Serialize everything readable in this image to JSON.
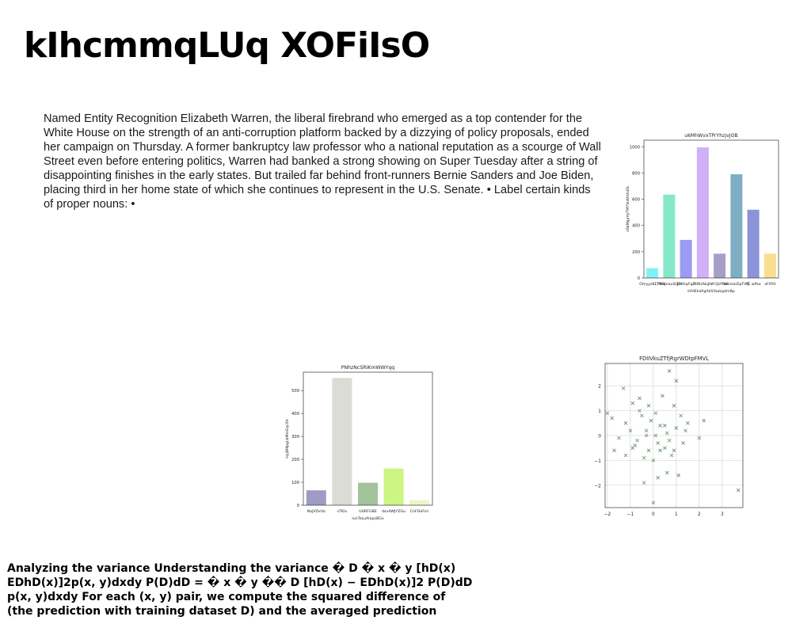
{
  "page": {
    "title": "kIhcmmqLUq XOFiIsO",
    "body_text": "Named Entity Recognition Elizabeth Warren, the liberal firebrand who emerged as a top contender for the White House on the strength of an anti-corruption platform backed by a dizzying of policy proposals, ended her campaign on Thursday. A former bankruptcy law professor who a national reputation as a scourge of Wall Street even before entering politics, Warren had banked a strong showing on Super Tuesday after a string of disappointing finishes in the early states. But trailed far behind front-runners Bernie Sanders and Joe Biden, placing third in her home state of which she continues to represent in the U.S. Senate. • Label certain kinds of proper nouns: •",
    "footer_text": "Analyzing the variance Understanding the variance � D � x � y [hD(x) EDhD(x)]2p(x, y)dxdy P(D)dD = � x � y �� D [hD(x) − EDhD(x)]2 P(D)dD p(x, y)dxdy For each (x, y) pair, we compute the squared difference of (the prediction with training dataset D) and the averaged prediction"
  },
  "chart_data": [
    {
      "type": "bar",
      "title": "ukMhWvxTPrYhzjvJOB",
      "xlabel": "tVHEkaRgAkSYaakgdmBp",
      "ylabel": "sSbMgyVyTMYVuKhVuEb",
      "categories": [
        "OmyyzKETPtq",
        "PbXmauSQD",
        "JRKhqFqZ",
        "dtBtzNuJfe",
        "rFGJVPNK",
        "zwmLkDpFVQ",
        "YC wPox",
        "oFtfVt"
      ],
      "values": [
        75,
        635,
        290,
        995,
        185,
        790,
        520,
        185
      ],
      "colors": [
        "#7ff3f4",
        "#86e8c8",
        "#9b9bf4",
        "#d0b0f6",
        "#a79fc8",
        "#7eaec4",
        "#8b94d8",
        "#fbdd8f"
      ],
      "ylim": [
        0,
        1050
      ],
      "yticks": [
        0,
        200,
        400,
        600,
        800,
        1000
      ]
    },
    {
      "type": "bar",
      "title": "PNhzNcSRiKmWWYqq",
      "xlabel": "lunTeLuAlapLBGx",
      "ylabel": "HyjBMpgLkMmEqcXh",
      "categories": [
        "NxJVOxVa",
        "sTKIx",
        "UURFGBE",
        "dsnAWJYZGu",
        "CnFDeFsri"
      ],
      "values": [
        65,
        555,
        98,
        160,
        22
      ],
      "colors": [
        "#9e9cc6",
        "#dcdcd6",
        "#a3c39a",
        "#cdf582",
        "#edf5c8"
      ],
      "ylim": [
        0,
        580
      ],
      "yticks": [
        0,
        100,
        200,
        300,
        400,
        500
      ]
    },
    {
      "type": "scatter",
      "title": "FDlIVkuZTfjRgrWDtpFMVL",
      "marker": "x",
      "color": "#5c8a60",
      "xlim": [
        -2.1,
        3.9
      ],
      "ylim": [
        -2.9,
        2.9
      ],
      "xticks": [
        -2,
        -1,
        0,
        1,
        2,
        3
      ],
      "yticks": [
        -2,
        -1,
        0,
        1,
        2
      ],
      "grid": true,
      "points": [
        [
          -2.0,
          0.9
        ],
        [
          -1.8,
          0.7
        ],
        [
          -1.7,
          -0.6
        ],
        [
          -1.5,
          -0.1
        ],
        [
          -1.3,
          1.9
        ],
        [
          -1.2,
          0.5
        ],
        [
          -0.9,
          1.3
        ],
        [
          -0.8,
          -0.4
        ],
        [
          -0.7,
          -0.2
        ],
        [
          -0.6,
          1.0
        ],
        [
          -0.5,
          0.8
        ],
        [
          -0.4,
          -0.9
        ],
        [
          -0.3,
          0.2
        ],
        [
          -0.2,
          -0.6
        ],
        [
          -0.1,
          0.6
        ],
        [
          0.0,
          -1.0
        ],
        [
          0.1,
          0.9
        ],
        [
          0.2,
          -0.3
        ],
        [
          0.3,
          0.4
        ],
        [
          0.4,
          1.6
        ],
        [
          0.5,
          -0.5
        ],
        [
          0.6,
          0.1
        ],
        [
          0.7,
          2.6
        ],
        [
          0.8,
          -0.8
        ],
        [
          0.9,
          1.2
        ],
        [
          1.0,
          0.3
        ],
        [
          1.1,
          -1.6
        ],
        [
          1.2,
          0.8
        ],
        [
          1.3,
          -0.3
        ],
        [
          1.5,
          0.5
        ],
        [
          2.0,
          -0.1
        ],
        [
          2.2,
          0.6
        ],
        [
          3.7,
          -2.2
        ],
        [
          0.0,
          -2.7
        ],
        [
          0.1,
          0.0
        ],
        [
          -0.4,
          -1.9
        ],
        [
          0.6,
          -1.5
        ],
        [
          0.9,
          -0.6
        ],
        [
          -1.0,
          0.2
        ],
        [
          1.4,
          0.2
        ],
        [
          -0.2,
          1.2
        ],
        [
          0.3,
          -0.6
        ],
        [
          -1.2,
          -0.8
        ],
        [
          0.5,
          0.4
        ],
        [
          -0.6,
          1.5
        ],
        [
          0.2,
          -1.7
        ],
        [
          -0.9,
          -0.5
        ],
        [
          1.0,
          2.2
        ],
        [
          -0.3,
          0.0
        ],
        [
          0.7,
          -0.2
        ]
      ]
    }
  ]
}
